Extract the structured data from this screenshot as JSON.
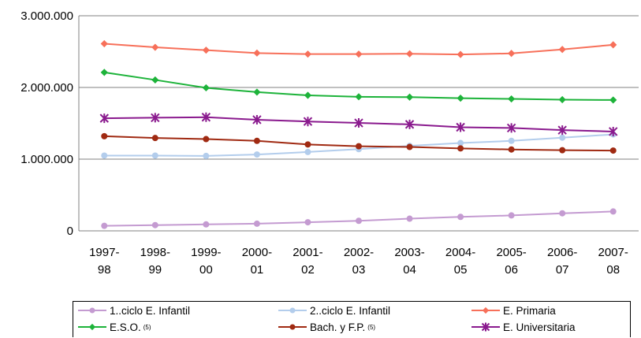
{
  "chart_data": {
    "type": "line",
    "categories": [
      [
        "1997-",
        "98"
      ],
      [
        "1998-",
        "99"
      ],
      [
        "1999-",
        "00"
      ],
      [
        "2000-",
        "01"
      ],
      [
        "2001-",
        "02"
      ],
      [
        "2002-",
        "03"
      ],
      [
        "2003-",
        "04"
      ],
      [
        "2004-",
        "05"
      ],
      [
        "2005-",
        "06"
      ],
      [
        "2006-",
        "07"
      ],
      [
        "2007-",
        "08"
      ]
    ],
    "yticks": [
      "0",
      "1.000.000",
      "2.000.000",
      "3.000.000"
    ],
    "ylim": [
      0,
      3000000
    ],
    "grid": "horizontal",
    "legend_position": "bottom",
    "series": [
      {
        "name": "1..ciclo E. Infantil",
        "color": "#c49bd1",
        "marker": "circle",
        "values": [
          70000,
          80000,
          90000,
          100000,
          120000,
          140000,
          170000,
          195000,
          215000,
          245000,
          270000
        ]
      },
      {
        "name": "2..ciclo E. Infantil",
        "color": "#b3cdec",
        "marker": "circle",
        "values": [
          1050000,
          1050000,
          1045000,
          1065000,
          1100000,
          1140000,
          1185000,
          1225000,
          1255000,
          1300000,
          1345000
        ]
      },
      {
        "name": "E. Primaria",
        "color": "#f7705a",
        "marker": "diamond",
        "values": [
          2610000,
          2560000,
          2520000,
          2480000,
          2465000,
          2465000,
          2470000,
          2460000,
          2475000,
          2530000,
          2595000
        ]
      },
      {
        "name": "E.S.O.",
        "note": "(5)",
        "color": "#1db33a",
        "marker": "diamond",
        "values": [
          2210000,
          2105000,
          1995000,
          1935000,
          1890000,
          1870000,
          1865000,
          1850000,
          1840000,
          1830000,
          1825000
        ]
      },
      {
        "name": "Bach. y F.P.",
        "note": "(5)",
        "color": "#a02a12",
        "marker": "circle",
        "values": [
          1320000,
          1295000,
          1280000,
          1255000,
          1205000,
          1180000,
          1170000,
          1150000,
          1135000,
          1125000,
          1120000
        ]
      },
      {
        "name": "E. Universitaria",
        "color": "#8a1a8e",
        "marker": "star",
        "values": [
          1570000,
          1578000,
          1585000,
          1550000,
          1525000,
          1505000,
          1485000,
          1445000,
          1435000,
          1405000,
          1385000
        ]
      }
    ]
  }
}
